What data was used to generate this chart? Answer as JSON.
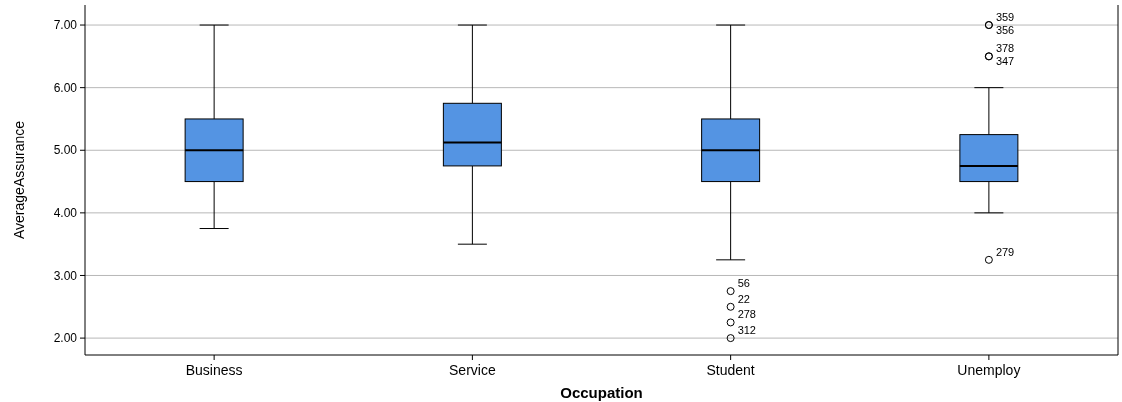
{
  "chart_data": {
    "type": "box",
    "xlabel": "Occupation",
    "ylabel": "AverageAssurance",
    "categories": [
      "Business",
      "Service",
      "Student",
      "Unemploy"
    ],
    "color": "#5494e3",
    "boxes": [
      {
        "low": 3.75,
        "q1": 4.5,
        "median": 5,
        "q3": 5.5,
        "high": 7
      },
      {
        "low": 3.5,
        "q1": 4.75,
        "median": 5.125,
        "q3": 5.75,
        "high": 7
      },
      {
        "low": 3.25,
        "q1": 4.5,
        "median": 5,
        "q3": 5.5,
        "high": 7,
        "outliers": [
          2.75,
          2.5,
          2.25,
          2
        ]
      },
      {
        "low": 4,
        "q1": 4.5,
        "median": 4.75,
        "q3": 5.25,
        "high": 6,
        "outliers": [
          7,
          7,
          6.5,
          6.5,
          3.25
        ]
      }
    ],
    "annotations": [
      "56",
      "22",
      "278",
      "312",
      "359",
      "356",
      "378",
      "347",
      "279"
    ],
    "ylim": [
      1.73,
      7.32
    ],
    "yticks": [
      {
        "value": 2,
        "label": "2.00"
      },
      {
        "value": 3,
        "label": "3.00"
      },
      {
        "value": 4,
        "label": "4.00"
      },
      {
        "value": 5,
        "label": "5.00"
      },
      {
        "value": 6,
        "label": "6.00"
      },
      {
        "value": 7,
        "label": "7.00"
      }
    ],
    "grid": "y"
  }
}
